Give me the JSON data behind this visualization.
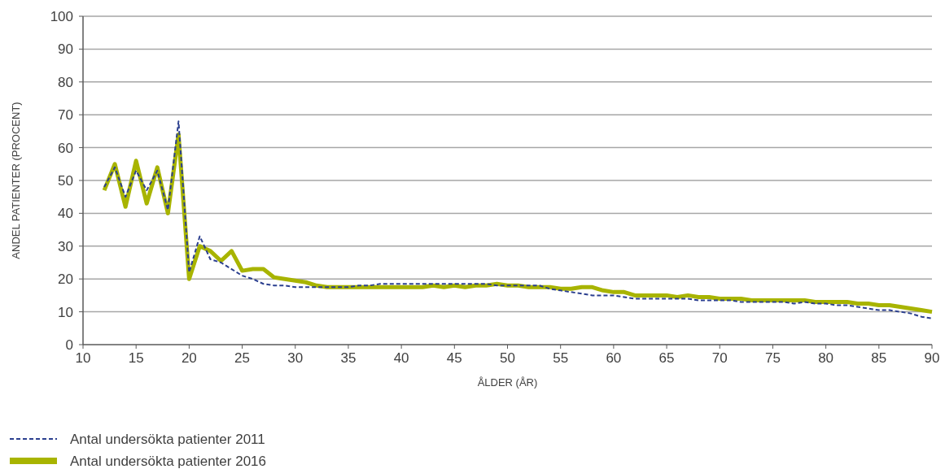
{
  "chart_data": {
    "type": "line",
    "xlabel": "ÅLDER (ÅR)",
    "ylabel": "ANDEL PATIENTER (PROCENT)",
    "x": [
      12,
      13,
      14,
      15,
      16,
      17,
      18,
      19,
      20,
      21,
      22,
      23,
      24,
      25,
      26,
      27,
      28,
      29,
      30,
      31,
      32,
      33,
      34,
      35,
      36,
      37,
      38,
      39,
      40,
      41,
      42,
      43,
      44,
      45,
      46,
      47,
      48,
      49,
      50,
      51,
      52,
      53,
      54,
      55,
      56,
      57,
      58,
      59,
      60,
      61,
      62,
      63,
      64,
      65,
      66,
      67,
      68,
      69,
      70,
      71,
      72,
      73,
      74,
      75,
      76,
      77,
      78,
      79,
      80,
      81,
      82,
      83,
      84,
      85,
      86,
      87,
      88,
      89,
      90
    ],
    "series": [
      {
        "name": "Antal undersökta patienter 2011",
        "color": "#2b3f8f",
        "line_style": "dashed",
        "values": [
          48,
          54,
          45,
          53,
          47,
          53,
          41,
          68,
          22,
          33,
          26,
          25,
          23,
          21,
          20,
          18.5,
          18,
          18,
          17.5,
          17.5,
          17.5,
          17.5,
          17.5,
          17.5,
          18,
          18,
          18.5,
          18.5,
          18.5,
          18.5,
          18.5,
          18.5,
          18.5,
          18.5,
          18.5,
          18.5,
          18.5,
          18,
          18,
          18,
          18,
          18,
          17,
          16.5,
          16,
          15.5,
          15,
          15,
          15,
          14.5,
          14,
          14,
          14,
          14,
          14,
          14,
          13.5,
          13.5,
          13.5,
          13.5,
          13,
          13,
          13,
          13,
          13,
          12.5,
          13,
          12.5,
          12.5,
          12,
          12,
          11.5,
          11,
          10.5,
          10.5,
          10,
          9.5,
          8.5,
          8
        ]
      },
      {
        "name": "Antal undersökta patienter 2016",
        "color": "#a8b400",
        "line_style": "solid",
        "values": [
          47,
          55,
          42,
          56,
          43,
          54,
          40,
          64,
          20,
          30,
          28.5,
          25.5,
          28.5,
          22.5,
          23,
          23,
          20.5,
          20,
          19.5,
          19,
          18,
          17.5,
          17.5,
          17.5,
          17.5,
          17.5,
          17.5,
          17.5,
          17.5,
          17.5,
          17.5,
          18,
          17.5,
          18,
          17.5,
          18,
          18,
          18.5,
          18,
          18,
          17.5,
          17.5,
          17.5,
          17,
          17,
          17.5,
          17.5,
          16.5,
          16,
          16,
          15,
          15,
          15,
          15,
          14.5,
          15,
          14.5,
          14.5,
          14,
          14,
          14,
          13.5,
          13.5,
          13.5,
          13.5,
          13.5,
          13.5,
          13,
          13,
          13,
          13,
          12.5,
          12.5,
          12,
          12,
          11.5,
          11,
          10.5,
          10
        ]
      }
    ],
    "xlim": [
      10,
      90
    ],
    "xticks": [
      10,
      15,
      20,
      25,
      30,
      35,
      40,
      45,
      50,
      55,
      60,
      65,
      70,
      75,
      80,
      85,
      90
    ],
    "ylim": [
      0,
      100
    ],
    "yticks": [
      0,
      10,
      20,
      30,
      40,
      50,
      60,
      70,
      80,
      90,
      100
    ],
    "grid": "y",
    "legend": "bottom left",
    "marker": "none"
  }
}
